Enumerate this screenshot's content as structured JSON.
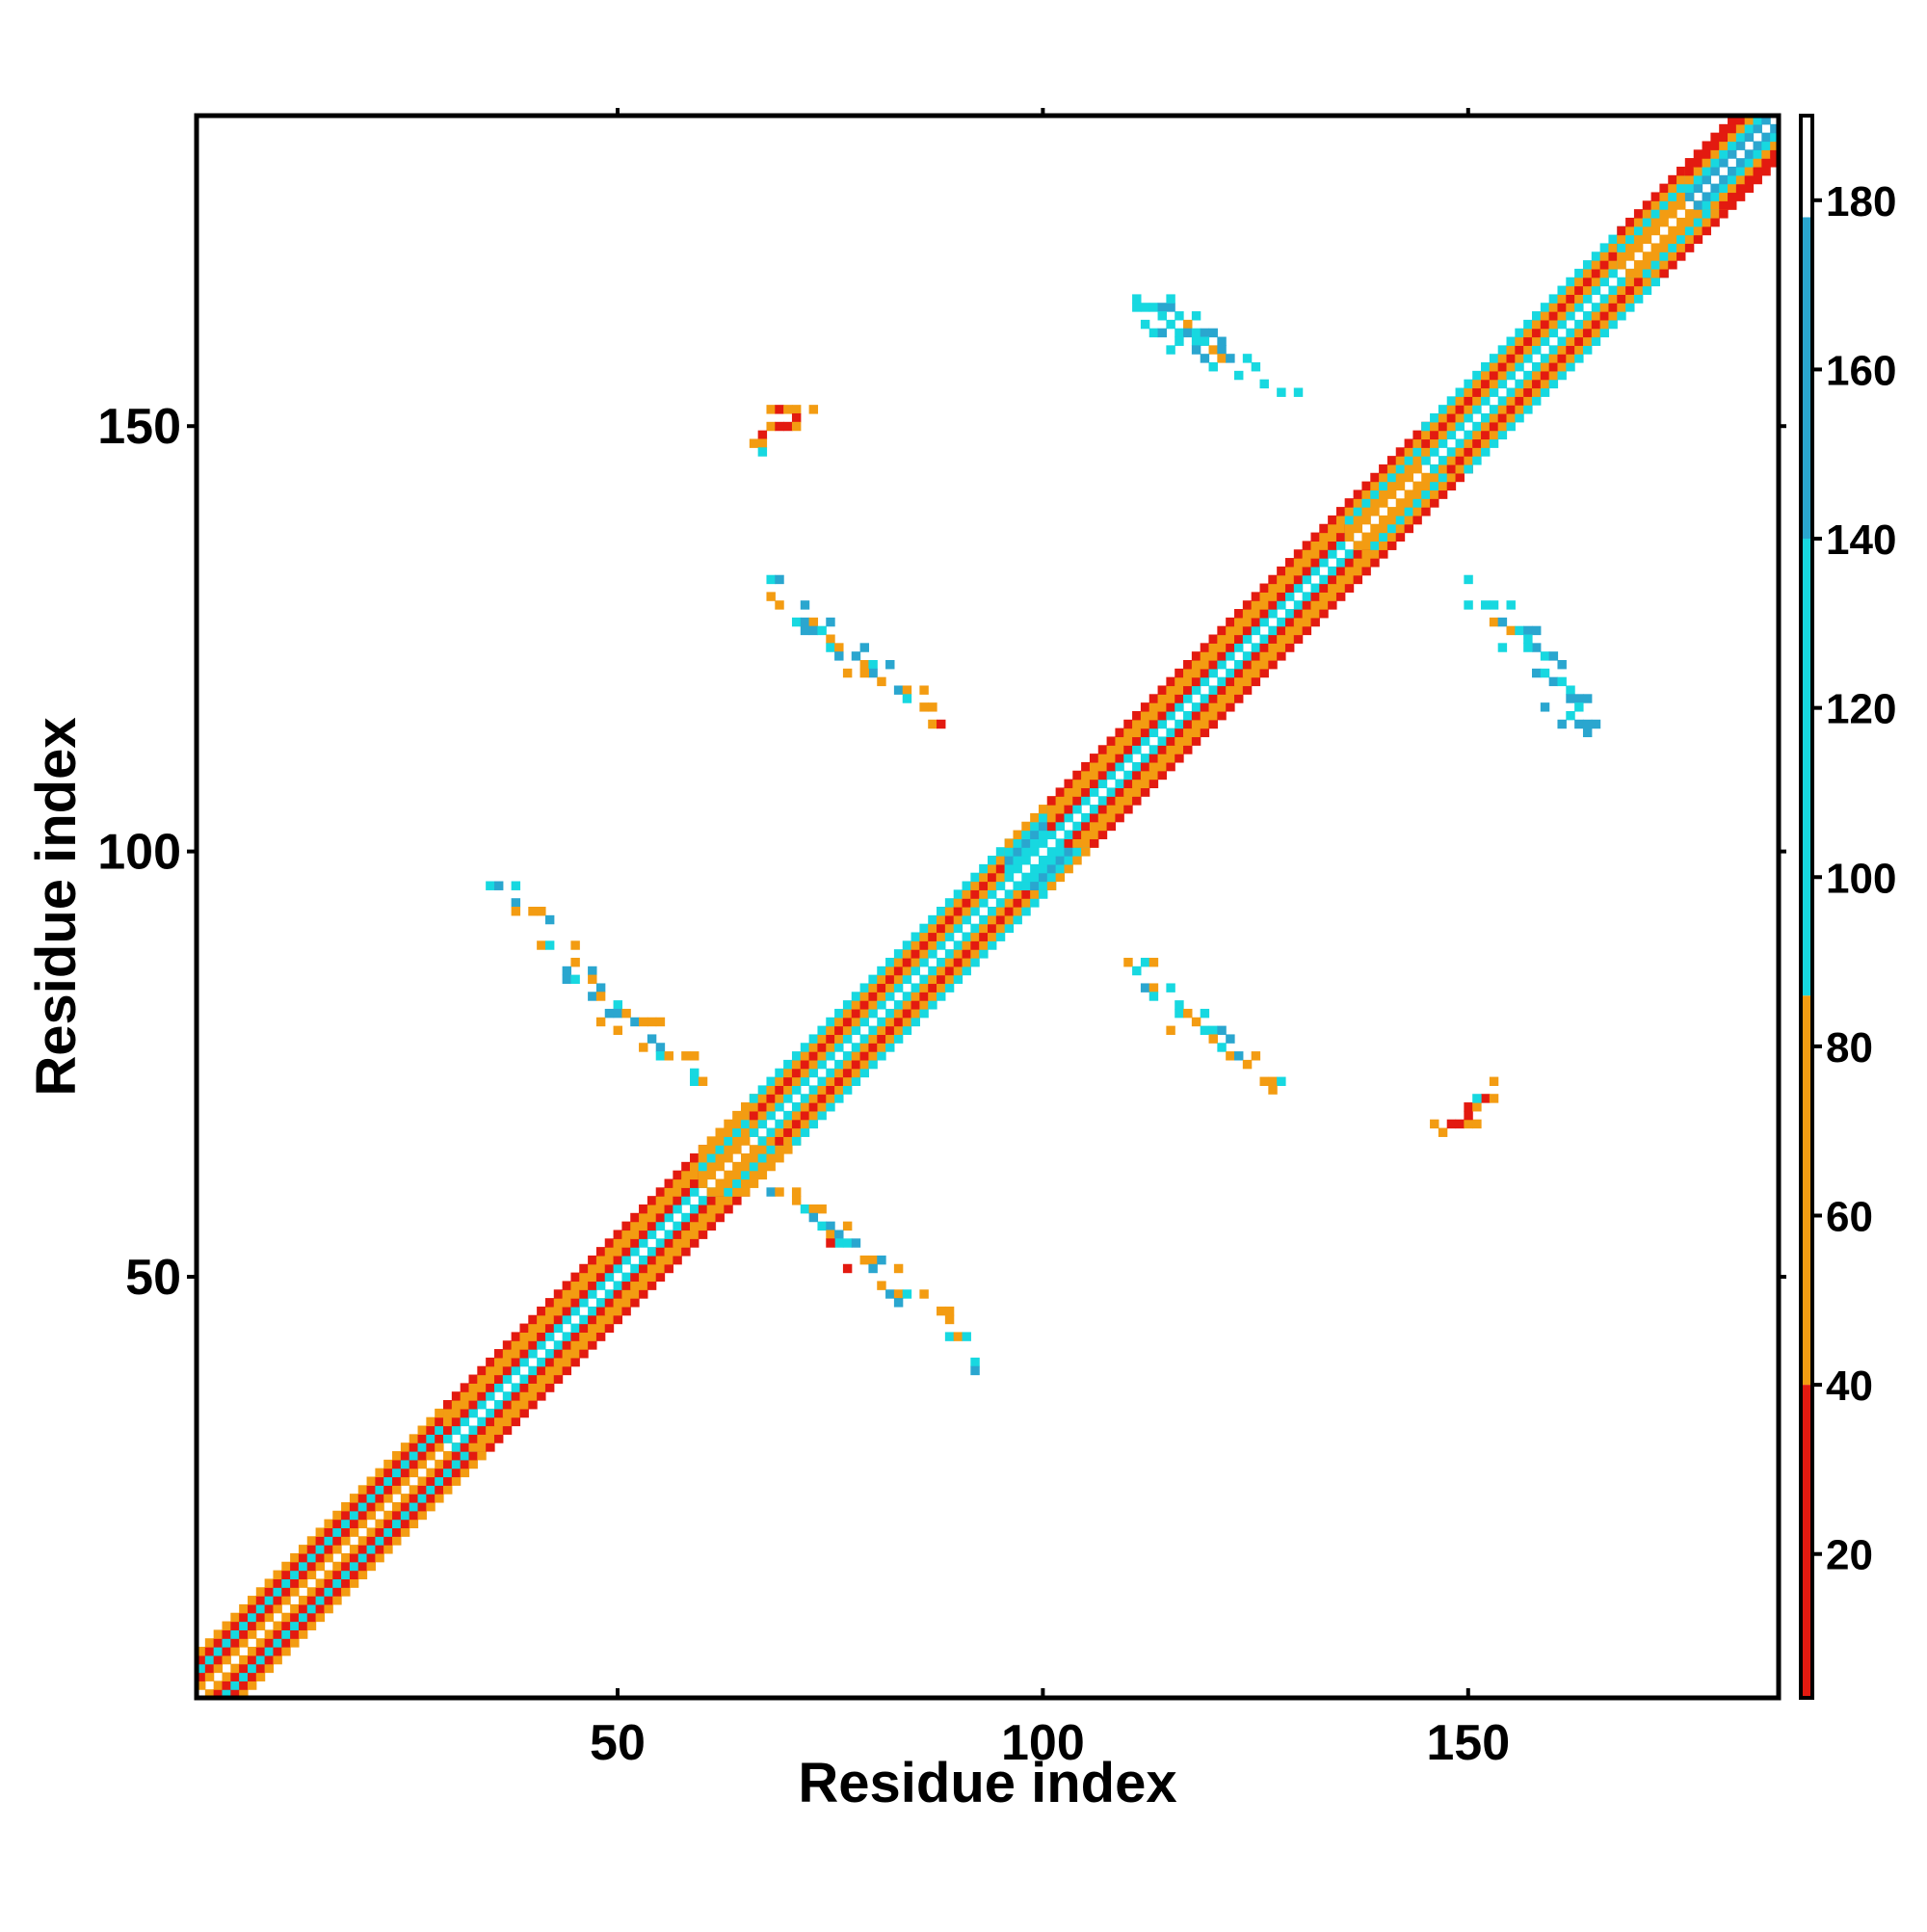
{
  "chart_data": {
    "type": "heatmap",
    "title": "",
    "xlabel": "Residue index",
    "ylabel": "Residue index",
    "xlim": [
      0.5,
      186.5
    ],
    "ylim": [
      0.5,
      186.5
    ],
    "xticks": [
      50,
      100,
      150
    ],
    "yticks": [
      50,
      100,
      150
    ],
    "grid": false,
    "legend": "colorbar on the right",
    "colorbar": {
      "range": [
        3,
        190
      ],
      "ticks": [
        20,
        40,
        60,
        80,
        100,
        120,
        140,
        160,
        180
      ],
      "bands": [
        {
          "from": 3,
          "to": 40,
          "color": "#e31a10"
        },
        {
          "from": 40,
          "to": 86,
          "color": "#f39c12"
        },
        {
          "from": 86,
          "to": 140,
          "color": "#17d8e0"
        },
        {
          "from": 140,
          "to": 178,
          "color": "#2aa6cf"
        },
        {
          "from": 178,
          "to": 190,
          "color": "#ffffff"
        }
      ]
    },
    "value_colors": {
      "20": "#e31a10",
      "60": "#f39c12",
      "110": "#17d8e0",
      "150": "#2aa6cf"
    },
    "diagonal_band": {
      "halfwidth": 5,
      "segments": [
        {
          "from": 1,
          "to": 30,
          "values": [
            60,
            20,
            110,
            20,
            60
          ]
        },
        {
          "from": 30,
          "to": 60,
          "values": [
            110,
            20,
            60,
            60,
            20
          ]
        },
        {
          "from": 60,
          "to": 66,
          "values": [
            60,
            60,
            110,
            60,
            60
          ]
        },
        {
          "from": 66,
          "to": 96,
          "values": [
            110,
            60,
            20,
            60,
            110
          ]
        },
        {
          "from": 96,
          "to": 101,
          "values": [
            110,
            110,
            150,
            110,
            60
          ]
        },
        {
          "from": 101,
          "to": 136,
          "values": [
            110,
            20,
            60,
            60,
            20
          ]
        },
        {
          "from": 136,
          "to": 145,
          "values": [
            60,
            60,
            110,
            60,
            20
          ]
        },
        {
          "from": 145,
          "to": 168,
          "values": [
            110,
            60,
            20,
            60,
            110
          ]
        },
        {
          "from": 168,
          "to": 176,
          "values": [
            60,
            60,
            110,
            60,
            20
          ]
        },
        {
          "from": 176,
          "to": 186,
          "values": [
            150,
            110,
            60,
            20,
            20
          ]
        }
      ]
    },
    "contacts": [
      {
        "i": 35,
        "j": 96,
        "v": 110
      },
      {
        "i": 36,
        "j": 96,
        "v": 150
      },
      {
        "i": 38,
        "j": 96,
        "v": 110
      },
      {
        "i": 38,
        "j": 94,
        "v": 150
      },
      {
        "i": 38,
        "j": 93,
        "v": 60
      },
      {
        "i": 40,
        "j": 93,
        "v": 60
      },
      {
        "i": 41,
        "j": 93,
        "v": 60
      },
      {
        "i": 42,
        "j": 92,
        "v": 150
      },
      {
        "i": 41,
        "j": 89,
        "v": 60
      },
      {
        "i": 42,
        "j": 89,
        "v": 110
      },
      {
        "i": 45,
        "j": 89,
        "v": 60
      },
      {
        "i": 45,
        "j": 87,
        "v": 60
      },
      {
        "i": 44,
        "j": 86,
        "v": 150
      },
      {
        "i": 44,
        "j": 85,
        "v": 150
      },
      {
        "i": 45,
        "j": 85,
        "v": 110
      },
      {
        "i": 47,
        "j": 86,
        "v": 150
      },
      {
        "i": 47,
        "j": 85,
        "v": 60
      },
      {
        "i": 48,
        "j": 84,
        "v": 150
      },
      {
        "i": 47,
        "j": 83,
        "v": 150
      },
      {
        "i": 48,
        "j": 83,
        "v": 60
      },
      {
        "i": 50,
        "j": 82,
        "v": 110
      },
      {
        "i": 49,
        "j": 81,
        "v": 150
      },
      {
        "i": 50,
        "j": 81,
        "v": 150
      },
      {
        "i": 51,
        "j": 81,
        "v": 60
      },
      {
        "i": 52,
        "j": 80,
        "v": 150
      },
      {
        "i": 53,
        "j": 80,
        "v": 60
      },
      {
        "i": 54,
        "j": 80,
        "v": 60
      },
      {
        "i": 55,
        "j": 80,
        "v": 60
      },
      {
        "i": 48,
        "j": 80,
        "v": 60
      },
      {
        "i": 50,
        "j": 79,
        "v": 60
      },
      {
        "i": 54,
        "j": 78,
        "v": 150
      },
      {
        "i": 55,
        "j": 77,
        "v": 150
      },
      {
        "i": 53,
        "j": 77,
        "v": 60
      },
      {
        "i": 55,
        "j": 76,
        "v": 110
      },
      {
        "i": 56,
        "j": 76,
        "v": 60
      },
      {
        "i": 58,
        "j": 76,
        "v": 60
      },
      {
        "i": 59,
        "j": 76,
        "v": 60
      },
      {
        "i": 59,
        "j": 74,
        "v": 110
      },
      {
        "i": 59,
        "j": 73,
        "v": 110
      },
      {
        "i": 60,
        "j": 73,
        "v": 60
      },
      {
        "i": 68,
        "j": 60,
        "v": 150
      },
      {
        "i": 69,
        "j": 60,
        "v": 60
      },
      {
        "i": 71,
        "j": 60,
        "v": 60
      },
      {
        "i": 71,
        "j": 59,
        "v": 60
      },
      {
        "i": 72,
        "j": 58,
        "v": 110
      },
      {
        "i": 73,
        "j": 58,
        "v": 60
      },
      {
        "i": 74,
        "j": 58,
        "v": 60
      },
      {
        "i": 73,
        "j": 57,
        "v": 150
      },
      {
        "i": 74,
        "j": 56,
        "v": 110
      },
      {
        "i": 75,
        "j": 56,
        "v": 150
      },
      {
        "i": 77,
        "j": 56,
        "v": 60
      },
      {
        "i": 75,
        "j": 55,
        "v": 60
      },
      {
        "i": 76,
        "j": 55,
        "v": 150
      },
      {
        "i": 76,
        "j": 54,
        "v": 110
      },
      {
        "i": 77,
        "j": 54,
        "v": 110
      },
      {
        "i": 78,
        "j": 54,
        "v": 150
      },
      {
        "i": 75,
        "j": 54,
        "v": 20
      },
      {
        "i": 79,
        "j": 52,
        "v": 60
      },
      {
        "i": 80,
        "j": 52,
        "v": 60
      },
      {
        "i": 81,
        "j": 52,
        "v": 150
      },
      {
        "i": 80,
        "j": 51,
        "v": 150
      },
      {
        "i": 77,
        "j": 51,
        "v": 20
      },
      {
        "i": 83,
        "j": 51,
        "v": 60
      },
      {
        "i": 81,
        "j": 49,
        "v": 60
      },
      {
        "i": 82,
        "j": 48,
        "v": 150
      },
      {
        "i": 83,
        "j": 48,
        "v": 60
      },
      {
        "i": 84,
        "j": 48,
        "v": 110
      },
      {
        "i": 86,
        "j": 48,
        "v": 60
      },
      {
        "i": 83,
        "j": 47,
        "v": 150
      },
      {
        "i": 88,
        "j": 46,
        "v": 60
      },
      {
        "i": 89,
        "j": 46,
        "v": 60
      },
      {
        "i": 89,
        "j": 45,
        "v": 60
      },
      {
        "i": 89,
        "j": 43,
        "v": 110
      },
      {
        "i": 90,
        "j": 43,
        "v": 60
      },
      {
        "i": 91,
        "j": 43,
        "v": 110
      },
      {
        "i": 92,
        "j": 40,
        "v": 110
      },
      {
        "i": 92,
        "j": 39,
        "v": 150
      },
      {
        "i": 68,
        "j": 132,
        "v": 110
      },
      {
        "i": 69,
        "j": 132,
        "v": 150
      },
      {
        "i": 68,
        "j": 130,
        "v": 60
      },
      {
        "i": 69,
        "j": 129,
        "v": 60
      },
      {
        "i": 72,
        "j": 129,
        "v": 150
      },
      {
        "i": 71,
        "j": 127,
        "v": 110
      },
      {
        "i": 72,
        "j": 127,
        "v": 150
      },
      {
        "i": 73,
        "j": 127,
        "v": 60
      },
      {
        "i": 75,
        "j": 127,
        "v": 150
      },
      {
        "i": 72,
        "j": 126,
        "v": 150
      },
      {
        "i": 73,
        "j": 126,
        "v": 150
      },
      {
        "i": 74,
        "j": 126,
        "v": 110
      },
      {
        "i": 75,
        "j": 125,
        "v": 60
      },
      {
        "i": 75,
        "j": 124,
        "v": 110
      },
      {
        "i": 76,
        "j": 124,
        "v": 60
      },
      {
        "i": 79,
        "j": 124,
        "v": 150
      },
      {
        "i": 76,
        "j": 123,
        "v": 150
      },
      {
        "i": 78,
        "j": 123,
        "v": 150
      },
      {
        "i": 79,
        "j": 122,
        "v": 60
      },
      {
        "i": 80,
        "j": 122,
        "v": 110
      },
      {
        "i": 82,
        "j": 122,
        "v": 150
      },
      {
        "i": 80,
        "j": 121,
        "v": 150
      },
      {
        "i": 77,
        "j": 121,
        "v": 60
      },
      {
        "i": 79,
        "j": 121,
        "v": 60
      },
      {
        "i": 81,
        "j": 120,
        "v": 60
      },
      {
        "i": 83,
        "j": 119,
        "v": 150
      },
      {
        "i": 84,
        "j": 119,
        "v": 60
      },
      {
        "i": 86,
        "j": 119,
        "v": 60
      },
      {
        "i": 84,
        "j": 118,
        "v": 110
      },
      {
        "i": 86,
        "j": 117,
        "v": 60
      },
      {
        "i": 87,
        "j": 117,
        "v": 60
      },
      {
        "i": 87,
        "j": 115,
        "v": 60
      },
      {
        "i": 88,
        "j": 115,
        "v": 20
      },
      {
        "i": 68,
        "j": 152,
        "v": 60
      },
      {
        "i": 69,
        "j": 152,
        "v": 20
      },
      {
        "i": 70,
        "j": 152,
        "v": 60
      },
      {
        "i": 71,
        "j": 152,
        "v": 60
      },
      {
        "i": 73,
        "j": 152,
        "v": 60
      },
      {
        "i": 71,
        "j": 151,
        "v": 20
      },
      {
        "i": 68,
        "j": 150,
        "v": 60
      },
      {
        "i": 69,
        "j": 150,
        "v": 20
      },
      {
        "i": 70,
        "j": 150,
        "v": 20
      },
      {
        "i": 71,
        "j": 150,
        "v": 60
      },
      {
        "i": 67,
        "j": 149,
        "v": 20
      },
      {
        "i": 66,
        "j": 148,
        "v": 60
      },
      {
        "i": 67,
        "j": 148,
        "v": 60
      },
      {
        "i": 67,
        "j": 147,
        "v": 110
      },
      {
        "i": 110,
        "j": 87,
        "v": 60
      },
      {
        "i": 112,
        "j": 87,
        "v": 110
      },
      {
        "i": 113,
        "j": 87,
        "v": 60
      },
      {
        "i": 111,
        "j": 86,
        "v": 110
      },
      {
        "i": 112,
        "j": 84,
        "v": 150
      },
      {
        "i": 113,
        "j": 84,
        "v": 60
      },
      {
        "i": 115,
        "j": 84,
        "v": 110
      },
      {
        "i": 113,
        "j": 83,
        "v": 110
      },
      {
        "i": 116,
        "j": 82,
        "v": 110
      },
      {
        "i": 116,
        "j": 81,
        "v": 110
      },
      {
        "i": 117,
        "j": 81,
        "v": 60
      },
      {
        "i": 119,
        "j": 81,
        "v": 110
      },
      {
        "i": 115,
        "j": 79,
        "v": 60
      },
      {
        "i": 118,
        "j": 80,
        "v": 60
      },
      {
        "i": 119,
        "j": 79,
        "v": 110
      },
      {
        "i": 120,
        "j": 79,
        "v": 110
      },
      {
        "i": 121,
        "j": 79,
        "v": 150
      },
      {
        "i": 120,
        "j": 78,
        "v": 60
      },
      {
        "i": 122,
        "j": 78,
        "v": 150
      },
      {
        "i": 121,
        "j": 77,
        "v": 110
      },
      {
        "i": 122,
        "j": 76,
        "v": 60
      },
      {
        "i": 123,
        "j": 76,
        "v": 150
      },
      {
        "i": 125,
        "j": 76,
        "v": 60
      },
      {
        "i": 124,
        "j": 75,
        "v": 60
      },
      {
        "i": 126,
        "j": 73,
        "v": 60
      },
      {
        "i": 127,
        "j": 73,
        "v": 60
      },
      {
        "i": 128,
        "j": 73,
        "v": 110
      },
      {
        "i": 127,
        "j": 72,
        "v": 60
      },
      {
        "i": 111,
        "j": 165,
        "v": 110
      },
      {
        "i": 111,
        "j": 164,
        "v": 110
      },
      {
        "i": 112,
        "j": 164,
        "v": 110
      },
      {
        "i": 113,
        "j": 164,
        "v": 110
      },
      {
        "i": 114,
        "j": 164,
        "v": 150
      },
      {
        "i": 115,
        "j": 164,
        "v": 150
      },
      {
        "i": 115,
        "j": 165,
        "v": 110
      },
      {
        "i": 114,
        "j": 163,
        "v": 110
      },
      {
        "i": 116,
        "j": 163,
        "v": 110
      },
      {
        "i": 118,
        "j": 163,
        "v": 110
      },
      {
        "i": 112,
        "j": 162,
        "v": 110
      },
      {
        "i": 115,
        "j": 162,
        "v": 110
      },
      {
        "i": 117,
        "j": 162,
        "v": 60
      },
      {
        "i": 113,
        "j": 161,
        "v": 110
      },
      {
        "i": 114,
        "j": 161,
        "v": 150
      },
      {
        "i": 116,
        "j": 161,
        "v": 110
      },
      {
        "i": 117,
        "j": 161,
        "v": 150
      },
      {
        "i": 118,
        "j": 161,
        "v": 110
      },
      {
        "i": 119,
        "j": 161,
        "v": 150
      },
      {
        "i": 120,
        "j": 161,
        "v": 150
      },
      {
        "i": 116,
        "j": 160,
        "v": 110
      },
      {
        "i": 118,
        "j": 160,
        "v": 110
      },
      {
        "i": 119,
        "j": 160,
        "v": 110
      },
      {
        "i": 121,
        "j": 160,
        "v": 150
      },
      {
        "i": 115,
        "j": 159,
        "v": 110
      },
      {
        "i": 118,
        "j": 159,
        "v": 150
      },
      {
        "i": 120,
        "j": 159,
        "v": 60
      },
      {
        "i": 121,
        "j": 159,
        "v": 150
      },
      {
        "i": 119,
        "j": 158,
        "v": 150
      },
      {
        "i": 121,
        "j": 158,
        "v": 60
      },
      {
        "i": 122,
        "j": 158,
        "v": 150
      },
      {
        "i": 124,
        "j": 158,
        "v": 110
      },
      {
        "i": 120,
        "j": 157,
        "v": 110
      },
      {
        "i": 125,
        "j": 157,
        "v": 110
      },
      {
        "i": 123,
        "j": 156,
        "v": 110
      },
      {
        "i": 126,
        "j": 155,
        "v": 110
      },
      {
        "i": 128,
        "j": 154,
        "v": 110
      },
      {
        "i": 130,
        "j": 154,
        "v": 110
      },
      {
        "i": 150,
        "j": 132,
        "v": 110
      },
      {
        "i": 150,
        "j": 129,
        "v": 110
      },
      {
        "i": 152,
        "j": 129,
        "v": 110
      },
      {
        "i": 153,
        "j": 129,
        "v": 110
      },
      {
        "i": 155,
        "j": 129,
        "v": 110
      },
      {
        "i": 153,
        "j": 127,
        "v": 60
      },
      {
        "i": 154,
        "j": 127,
        "v": 150
      },
      {
        "i": 155,
        "j": 126,
        "v": 60
      },
      {
        "i": 156,
        "j": 126,
        "v": 110
      },
      {
        "i": 157,
        "j": 126,
        "v": 150
      },
      {
        "i": 158,
        "j": 126,
        "v": 150
      },
      {
        "i": 157,
        "j": 125,
        "v": 110
      },
      {
        "i": 158,
        "j": 124,
        "v": 150
      },
      {
        "i": 154,
        "j": 124,
        "v": 110
      },
      {
        "i": 157,
        "j": 124,
        "v": 110
      },
      {
        "i": 159,
        "j": 123,
        "v": 110
      },
      {
        "i": 160,
        "j": 123,
        "v": 150
      },
      {
        "i": 161,
        "j": 122,
        "v": 150
      },
      {
        "i": 158,
        "j": 121,
        "v": 150
      },
      {
        "i": 159,
        "j": 121,
        "v": 110
      },
      {
        "i": 160,
        "j": 120,
        "v": 150
      },
      {
        "i": 161,
        "j": 120,
        "v": 110
      },
      {
        "i": 162,
        "j": 119,
        "v": 110
      },
      {
        "i": 162,
        "j": 118,
        "v": 150
      },
      {
        "i": 163,
        "j": 118,
        "v": 150
      },
      {
        "i": 164,
        "j": 118,
        "v": 150
      },
      {
        "i": 159,
        "j": 117,
        "v": 150
      },
      {
        "i": 162,
        "j": 116,
        "v": 110
      },
      {
        "i": 163,
        "j": 117,
        "v": 110
      },
      {
        "i": 161,
        "j": 115,
        "v": 150
      },
      {
        "i": 163,
        "j": 115,
        "v": 150
      },
      {
        "i": 164,
        "j": 115,
        "v": 150
      },
      {
        "i": 165,
        "j": 115,
        "v": 150
      },
      {
        "i": 164,
        "j": 114,
        "v": 150
      },
      {
        "i": 146,
        "j": 68,
        "v": 60
      },
      {
        "i": 147,
        "j": 67,
        "v": 60
      },
      {
        "i": 148,
        "j": 68,
        "v": 20
      },
      {
        "i": 149,
        "j": 68,
        "v": 20
      },
      {
        "i": 150,
        "j": 68,
        "v": 60
      },
      {
        "i": 151,
        "j": 68,
        "v": 60
      },
      {
        "i": 150,
        "j": 69,
        "v": 20
      },
      {
        "i": 150,
        "j": 70,
        "v": 20
      },
      {
        "i": 151,
        "j": 70,
        "v": 60
      },
      {
        "i": 152,
        "j": 71,
        "v": 20
      },
      {
        "i": 153,
        "j": 71,
        "v": 60
      },
      {
        "i": 151,
        "j": 71,
        "v": 110
      },
      {
        "i": 153,
        "j": 73,
        "v": 60
      }
    ]
  }
}
